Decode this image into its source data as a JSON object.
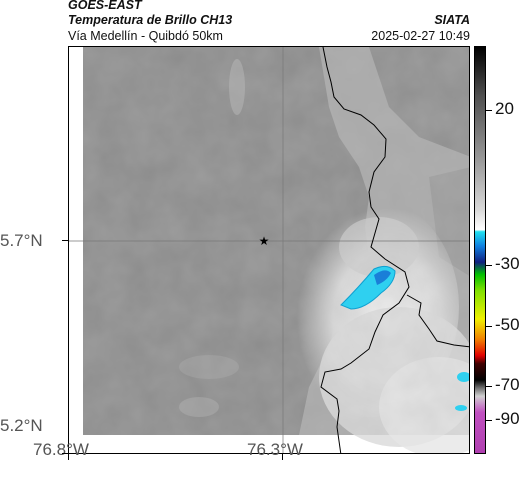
{
  "header": {
    "satellite": "GOES-EAST",
    "product": "Temperatura de Brillo CH13",
    "location": "Vía Medellín - Quibdó 50km",
    "org": "SIATA",
    "datetime": "2025-02-27 10:49"
  },
  "map": {
    "latitude_labels": [
      "5.7°N",
      "5.2°N"
    ],
    "longitude_labels": [
      "76.8°W",
      "76.3°W"
    ],
    "marker": "star-marker"
  },
  "colorbar": {
    "tick_labels": [
      "20",
      "-30",
      "-50",
      "-70",
      "-90"
    ]
  }
}
